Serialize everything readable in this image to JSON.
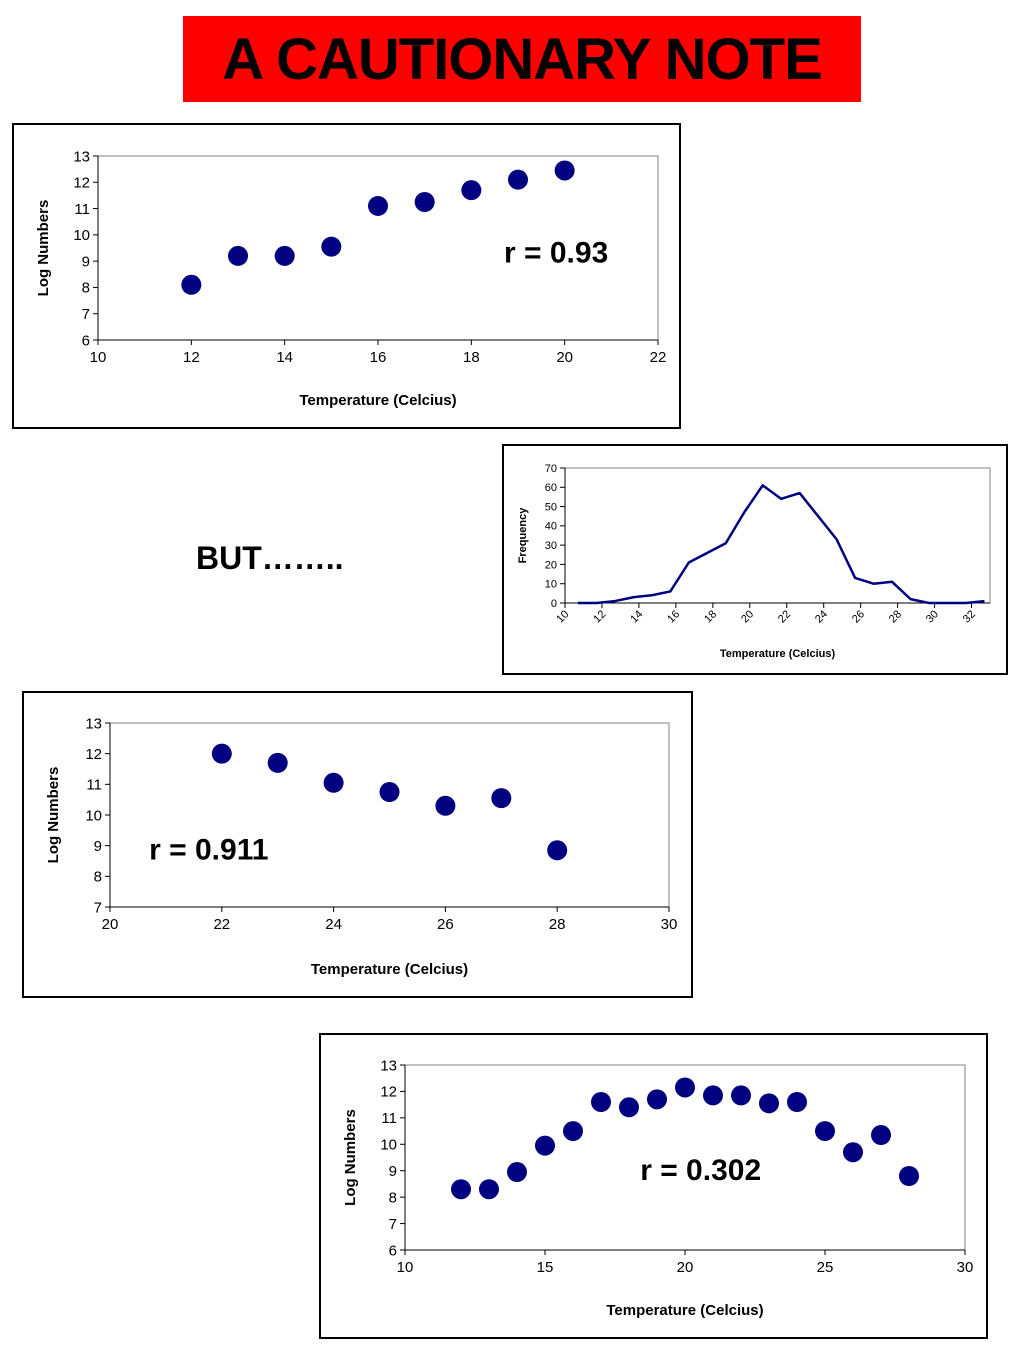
{
  "title": "A CAUTIONARY NOTE",
  "but_text": "BUT……..",
  "colors": {
    "banner": "#ff0000",
    "marker": "#000080",
    "line": "#000080"
  },
  "chart_data": [
    {
      "type": "scatter",
      "xlabel": "Temperature (Celcius)",
      "ylabel": "Log Numbers",
      "xlim": [
        10,
        22
      ],
      "ylim": [
        6,
        13
      ],
      "xticks": [
        10,
        12,
        14,
        16,
        18,
        20,
        22
      ],
      "yticks": [
        6,
        7,
        8,
        9,
        10,
        11,
        12,
        13
      ],
      "x": [
        12,
        13,
        14,
        15,
        16,
        17,
        18,
        19,
        20
      ],
      "y": [
        8.1,
        9.2,
        9.2,
        9.55,
        11.1,
        11.25,
        11.7,
        12.1,
        12.45
      ],
      "annotation": "r = 0.93",
      "annotation_pos": [
        18.7,
        8.95
      ],
      "grid": false
    },
    {
      "type": "line",
      "xlabel": "Temperature (Celcius)",
      "ylabel": "Frequency",
      "xlim": [
        10,
        33
      ],
      "ylim": [
        0,
        70
      ],
      "xticks": [
        10,
        12,
        14,
        16,
        18,
        20,
        22,
        24,
        26,
        28,
        30,
        32
      ],
      "yticks": [
        0,
        10,
        20,
        30,
        40,
        50,
        60,
        70
      ],
      "x": [
        10.7,
        11.7,
        12.7,
        13.7,
        14.7,
        15.7,
        16.7,
        17.7,
        18.7,
        19.7,
        20.7,
        21.7,
        22.7,
        23.7,
        24.7,
        25.7,
        26.7,
        27.7,
        28.7,
        29.7,
        30.7,
        31.7,
        32.7
      ],
      "y": [
        0,
        0,
        1,
        3,
        4,
        6,
        21,
        26,
        31,
        47,
        61,
        54,
        57,
        45,
        33,
        13,
        10,
        11,
        2,
        0,
        0,
        0,
        1
      ],
      "grid": false
    },
    {
      "type": "scatter",
      "xlabel": "Temperature (Celcius)",
      "ylabel": "Log Numbers",
      "xlim": [
        20,
        30
      ],
      "ylim": [
        7,
        13
      ],
      "xticks": [
        20,
        22,
        24,
        26,
        28,
        30
      ],
      "yticks": [
        7,
        8,
        9,
        10,
        11,
        12,
        13
      ],
      "x": [
        22,
        23,
        24,
        25,
        26,
        27,
        28
      ],
      "y": [
        12.0,
        11.7,
        11.05,
        10.75,
        10.3,
        10.55,
        8.85
      ],
      "annotation": "r = 0.911",
      "annotation_pos": [
        20.7,
        8.55
      ],
      "grid": false
    },
    {
      "type": "scatter",
      "xlabel": "Temperature (Celcius)",
      "ylabel": "Log Numbers",
      "xlim": [
        10,
        30
      ],
      "ylim": [
        6,
        13
      ],
      "xticks": [
        10,
        15,
        20,
        25,
        30
      ],
      "yticks": [
        6,
        7,
        8,
        9,
        10,
        11,
        12,
        13
      ],
      "x": [
        12,
        13,
        14,
        15,
        16,
        17,
        18,
        19,
        20,
        21,
        22,
        23,
        24,
        25,
        26,
        27,
        28
      ],
      "y": [
        8.3,
        8.3,
        8.95,
        9.95,
        10.5,
        11.6,
        11.4,
        11.7,
        12.15,
        11.85,
        11.85,
        11.55,
        11.6,
        10.5,
        9.7,
        10.35,
        8.8
      ],
      "annotation": "r = 0.302",
      "annotation_pos": [
        18.4,
        8.65
      ],
      "grid": false
    }
  ]
}
